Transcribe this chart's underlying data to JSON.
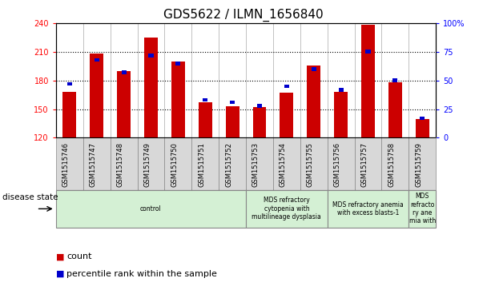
{
  "title": "GDS5622 / ILMN_1656840",
  "samples": [
    "GSM1515746",
    "GSM1515747",
    "GSM1515748",
    "GSM1515749",
    "GSM1515750",
    "GSM1515751",
    "GSM1515752",
    "GSM1515753",
    "GSM1515754",
    "GSM1515755",
    "GSM1515756",
    "GSM1515757",
    "GSM1515758",
    "GSM1515759"
  ],
  "counts": [
    168,
    208,
    190,
    225,
    200,
    157,
    153,
    152,
    167,
    196,
    168,
    238,
    178,
    140
  ],
  "percentiles": [
    47,
    68,
    57,
    72,
    65,
    33,
    31,
    28,
    45,
    60,
    42,
    75,
    50,
    17
  ],
  "ymin": 120,
  "ymax": 240,
  "yticks": [
    120,
    150,
    180,
    210,
    240
  ],
  "right_yticks": [
    0,
    25,
    50,
    75,
    100
  ],
  "bar_color": "#cc0000",
  "dot_color": "#0000cc",
  "light_green": "#d4f0d4",
  "gray_box": "#d8d8d8",
  "groups": [
    {
      "label": "control",
      "start": 0,
      "end": 7
    },
    {
      "label": "MDS refractory\ncytopenia with\nmultilineage dysplasia",
      "start": 7,
      "end": 10
    },
    {
      "label": "MDS refractory anemia\nwith excess blasts-1",
      "start": 10,
      "end": 13
    },
    {
      "label": "MDS\nrefracto\nry ane\nmia with",
      "start": 13,
      "end": 14
    }
  ],
  "disease_state_label": "disease state",
  "legend_count": "count",
  "legend_pct": "percentile rank within the sample",
  "title_fontsize": 11,
  "tick_fontsize": 7,
  "label_fontsize": 6,
  "legend_fontsize": 8
}
